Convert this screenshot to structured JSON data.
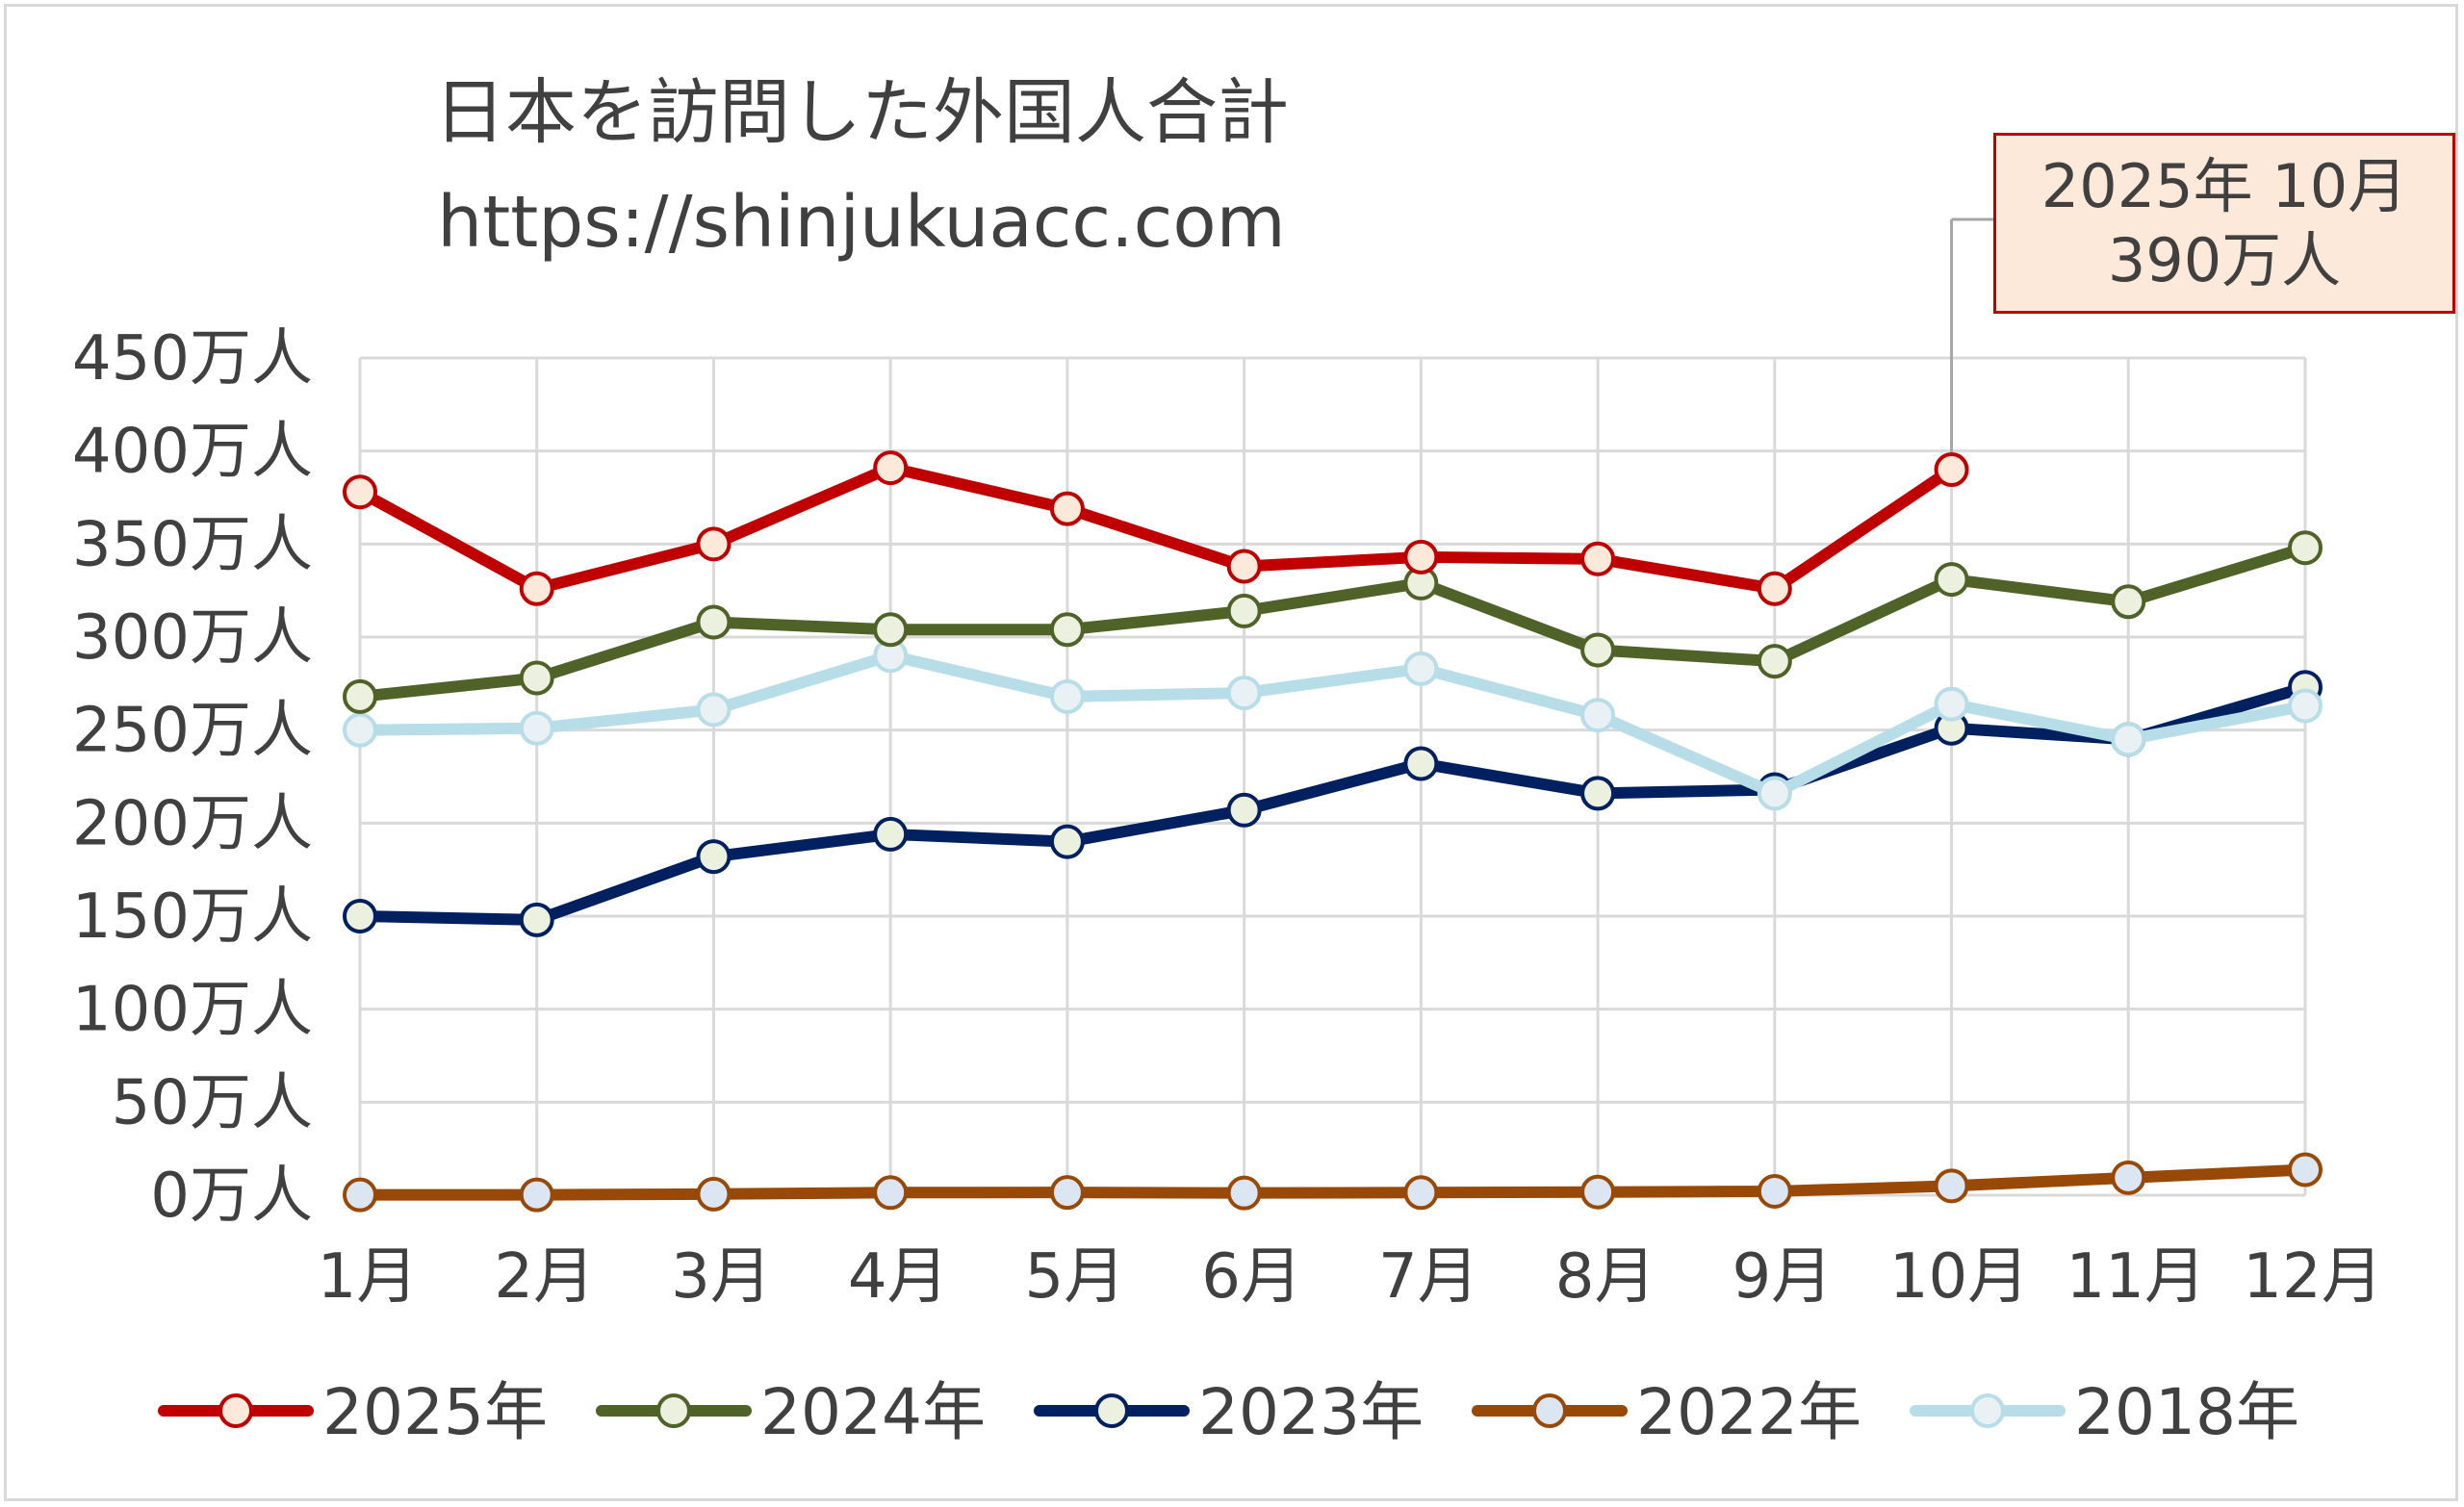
{
  "title": "日本を訪問した外国人合計",
  "subtitle": "https://shinjukuacc.com",
  "callout": {
    "line1": "2025年 10月",
    "line2": "390万人",
    "series": "2025年",
    "x": "10月",
    "y": 390
  },
  "chart_data": {
    "type": "line",
    "categories": [
      "1月",
      "2月",
      "3月",
      "4月",
      "5月",
      "6月",
      "7月",
      "8月",
      "9月",
      "10月",
      "11月",
      "12月"
    ],
    "ylim": [
      0,
      450
    ],
    "yticks": [
      0,
      50,
      100,
      150,
      200,
      250,
      300,
      350,
      400,
      450
    ],
    "ytick_labels": [
      "0万人",
      "50万人",
      "100万人",
      "150万人",
      "200万人",
      "250万人",
      "300万人",
      "350万人",
      "400万人",
      "450万人"
    ],
    "grid": true,
    "legend_position": "bottom",
    "series": [
      {
        "name": "2025年",
        "color": "#c00000",
        "marker_fill": "#fde9d9",
        "values": [
          378,
          326,
          350,
          391,
          369,
          338,
          343,
          342,
          326,
          390,
          null,
          null
        ]
      },
      {
        "name": "2024年",
        "color": "#4f6228",
        "marker_fill": "#ebf1de",
        "values": [
          268,
          278,
          308,
          304,
          304,
          314,
          329,
          293,
          287,
          331,
          319,
          348
        ]
      },
      {
        "name": "2023年",
        "color": "#002060",
        "marker_fill": "#ebf1de",
        "values": [
          150,
          148,
          182,
          194,
          190,
          207,
          232,
          216,
          218,
          251,
          245,
          273
        ]
      },
      {
        "name": "2022年",
        "color": "#984807",
        "marker_fill": "#dce6f2",
        "values": [
          0.2,
          0.2,
          0.6,
          1.4,
          1.5,
          1.2,
          1.4,
          1.7,
          2.1,
          5.0,
          9.4,
          13.7
        ]
      },
      {
        "name": "2018年",
        "color": "#b7dde8",
        "marker_fill": "#e9f1f5",
        "values": [
          250,
          251,
          261,
          290,
          268,
          270,
          283,
          258,
          216,
          264,
          245,
          263
        ]
      }
    ]
  }
}
